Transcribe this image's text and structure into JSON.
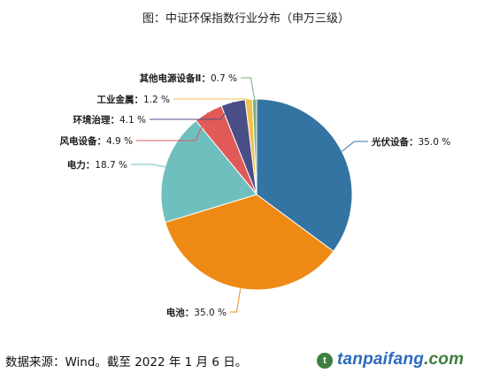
{
  "chart_data": {
    "type": "pie",
    "title": "图：中证环保指数行业分布（申万三级）",
    "slices": [
      {
        "name": "光伏设备",
        "value": 35.0,
        "label": "35.0 %",
        "color": "#3474a3"
      },
      {
        "name": "电池",
        "value": 35.0,
        "label": "35.0 %",
        "color": "#ee8a14"
      },
      {
        "name": "电力",
        "value": 18.7,
        "label": "18.7 %",
        "color": "#6fbfbf"
      },
      {
        "name": "风电设备",
        "value": 4.9,
        "label": "4.9 %",
        "color": "#e05a57"
      },
      {
        "name": "环境治理",
        "value": 4.1,
        "label": "4.1 %",
        "color": "#4a4e86"
      },
      {
        "name": "工业金属",
        "value": 1.2,
        "label": "1.2 %",
        "color": "#f2c24d"
      },
      {
        "name": "其他电源设备Ⅱ",
        "value": 0.7,
        "label": "0.7 %",
        "color": "#7cae7c"
      }
    ],
    "legend": "none"
  },
  "footer": {
    "source": "数据来源：Wind。截至 2022 年 1 月 6 日。"
  },
  "watermark": {
    "icon_letter": "t",
    "text_main": "tanpaifang",
    "text_domain": ".com"
  }
}
